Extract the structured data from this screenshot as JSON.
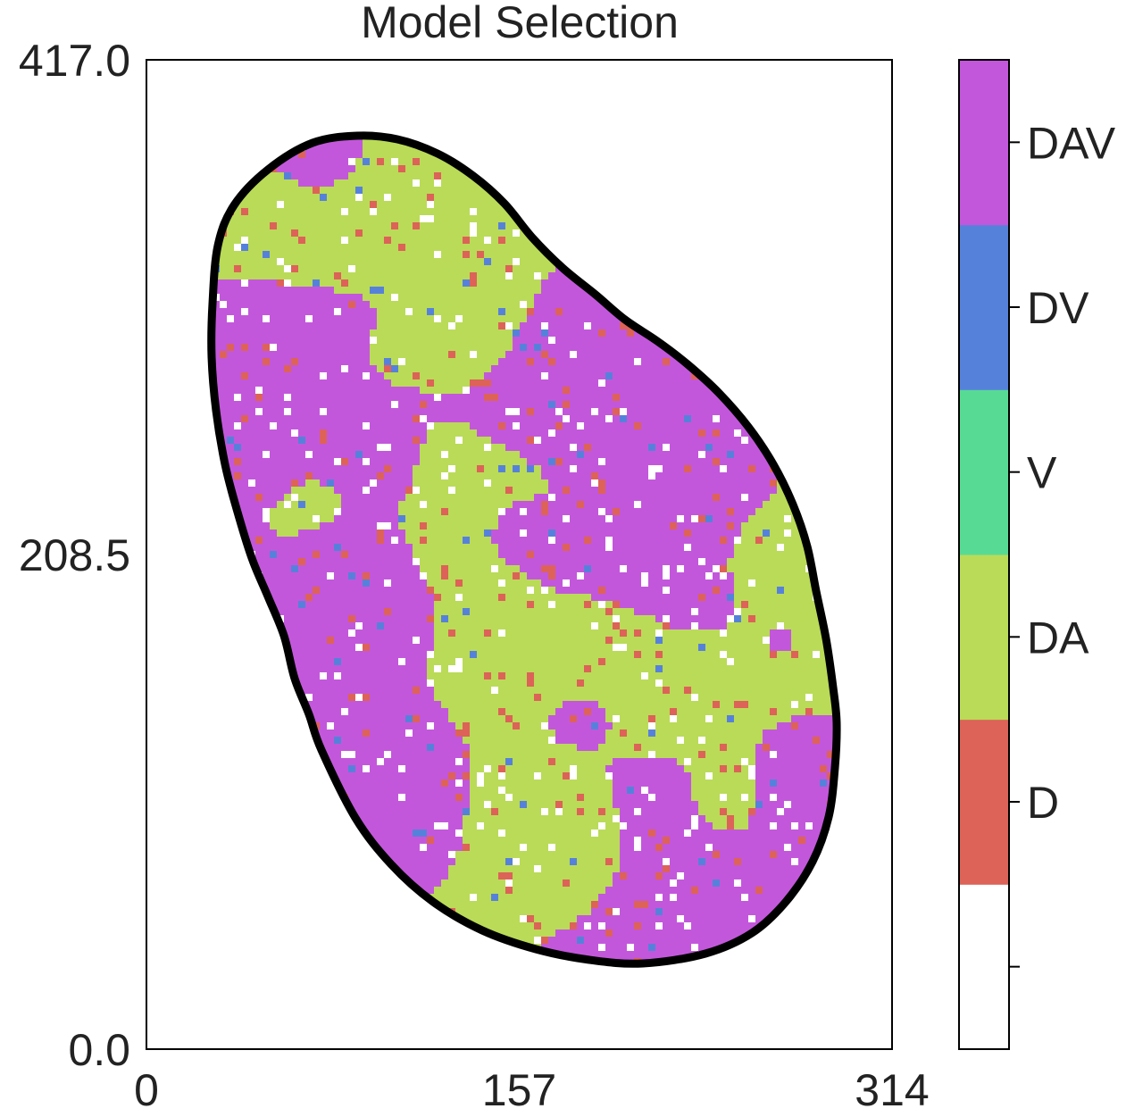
{
  "chart_data": {
    "type": "heatmap",
    "title": "Model Selection",
    "xlabel": "",
    "ylabel": "",
    "xlim": [
      0,
      314
    ],
    "ylim": [
      0,
      417
    ],
    "xticks": [
      "0",
      "157",
      "314"
    ],
    "yticks": [
      "0.0",
      "208.5",
      "417.0"
    ],
    "grid": false,
    "description_values": {
      "region_outline": "irregular oval region, roughly x 28–292, y 36–384"
    },
    "colorbar": {
      "categories": [
        {
          "label": "",
          "color": "#ffffff"
        },
        {
          "label": "D",
          "color": "#dd6258"
        },
        {
          "label": "DA",
          "color": "#badb57"
        },
        {
          "label": "V",
          "color": "#57db94"
        },
        {
          "label": "DV",
          "color": "#5681db"
        },
        {
          "label": "DAV",
          "color": "#c357db"
        }
      ]
    },
    "cell_shares_estimate": {
      "DAV": 0.47,
      "DA": 0.42,
      "D": 0.04,
      "DV": 0.02,
      "V": 0.0,
      "none": 0.05
    }
  }
}
